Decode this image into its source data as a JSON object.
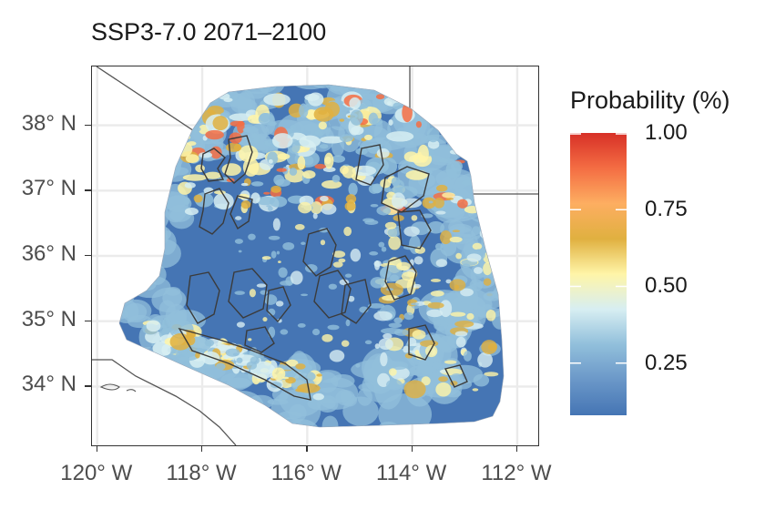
{
  "title": "SSP3-7.0 2071–2100",
  "y_ticks": [
    {
      "label": "38° N",
      "value": 38
    },
    {
      "label": "37° N",
      "value": 37
    },
    {
      "label": "36° N",
      "value": 36
    },
    {
      "label": "35° N",
      "value": 35
    },
    {
      "label": "34° N",
      "value": 34
    }
  ],
  "x_ticks": [
    {
      "label": "120° W",
      "value": -120
    },
    {
      "label": "118° W",
      "value": -118
    },
    {
      "label": "116° W",
      "value": -116
    },
    {
      "label": "114° W",
      "value": -114
    },
    {
      "label": "112° W",
      "value": -112
    }
  ],
  "lon_range": [
    -120.1,
    -111.6
  ],
  "lat_range": [
    33.1,
    38.9
  ],
  "legend": {
    "title": "Probability (%)",
    "labels": [
      {
        "text": "1.00",
        "value": 1.0
      },
      {
        "text": "0.75",
        "value": 0.75
      },
      {
        "text": "0.50",
        "value": 0.5
      },
      {
        "text": "0.25",
        "value": 0.25
      }
    ],
    "range": [
      0.08,
      1.0
    ],
    "colors": [
      "#d73027",
      "#f46d43",
      "#fdae61",
      "#e0b040",
      "#fff5a8",
      "#d7eef2",
      "#91bfdb",
      "#6a97c8",
      "#4575b4"
    ]
  },
  "colors": {
    "background": "#4575b4",
    "grid": "#ebebeb",
    "outline": "#333333",
    "light_blue": "#91bfdb",
    "pale": "#d7eef2",
    "yellow": "#fff5a8",
    "orange": "#f46d43",
    "gold": "#e0b040"
  }
}
